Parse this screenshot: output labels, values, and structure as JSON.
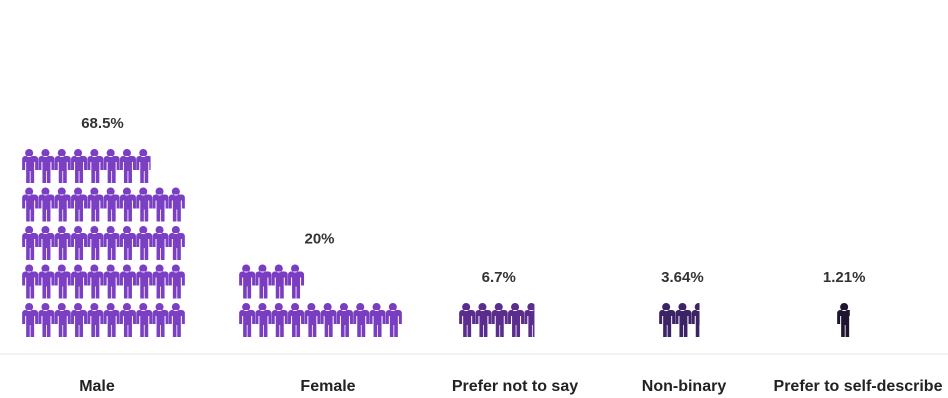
{
  "chart_data": {
    "type": "bar",
    "title": "",
    "xlabel": "",
    "ylabel": "",
    "categories": [
      "Male",
      "Female",
      "Prefer not to say",
      "Non-binary",
      "Prefer to self-describe"
    ],
    "values": [
      68.5,
      20,
      6.7,
      3.64,
      1.21
    ],
    "value_labels": [
      "68.5%",
      "20%",
      "6.7%",
      "3.64%",
      "1.21%"
    ],
    "ylim": [
      0,
      100
    ],
    "unit": "%",
    "mark": "person-icon",
    "colors": [
      "#7b3fc4",
      "#7a3cc0",
      "#5a2c8c",
      "#3c2366",
      "#1e1530"
    ],
    "grid": false,
    "legend": "none"
  }
}
